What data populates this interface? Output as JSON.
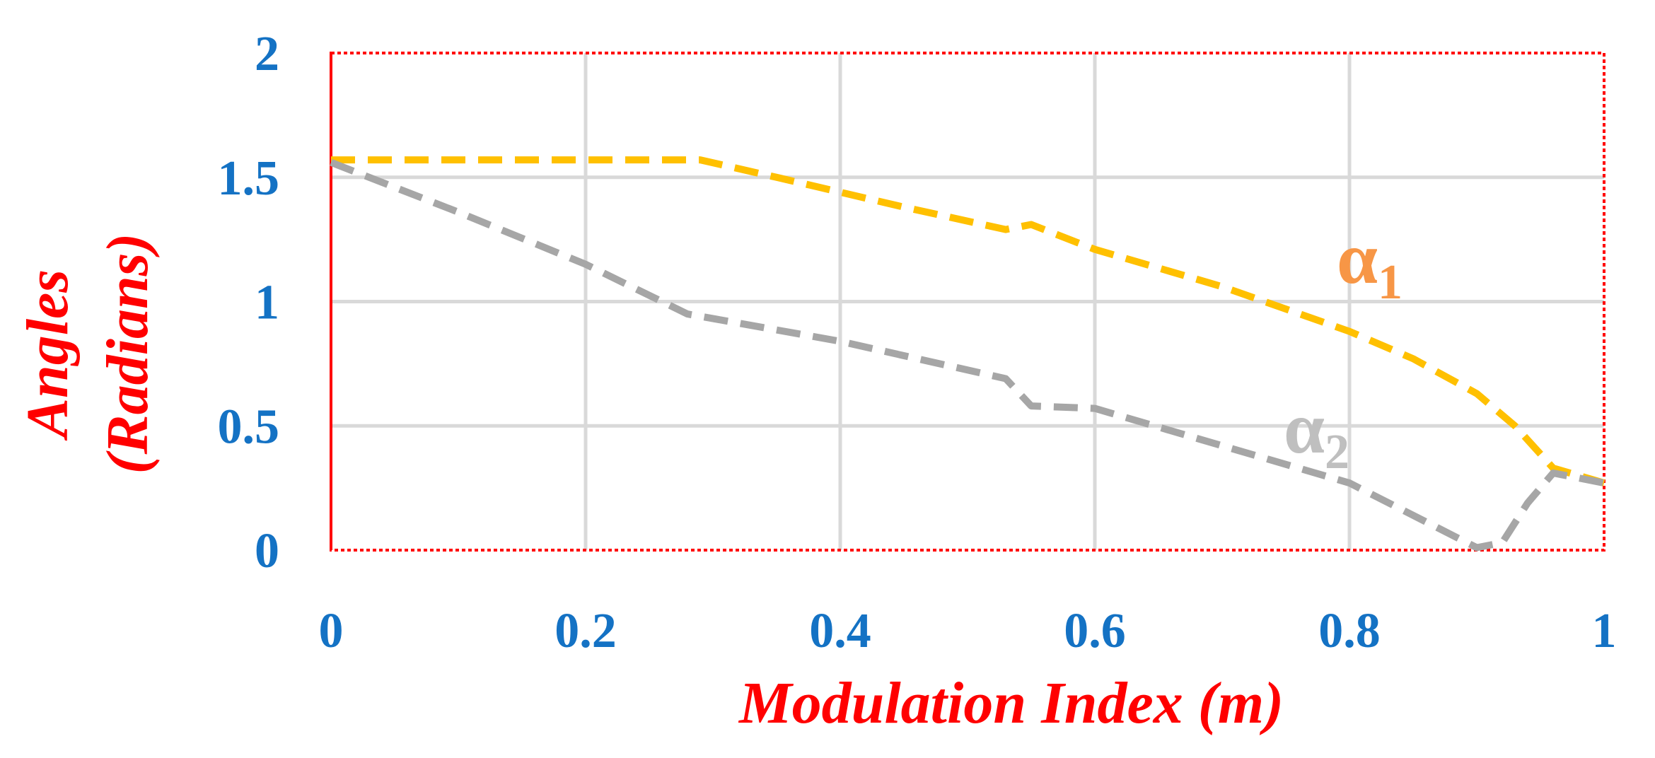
{
  "chart_data": {
    "type": "line",
    "xlabel": "Modulation Index (m)",
    "ylabel_lines": [
      "Angles",
      "(Radians)"
    ],
    "xlim": [
      0,
      1
    ],
    "ylim": [
      0,
      2
    ],
    "x_ticks": [
      "0",
      "0.2",
      "0.4",
      "0.6",
      "0.8",
      "1"
    ],
    "y_ticks": [
      "0",
      "0.5",
      "1",
      "1.5",
      "2"
    ],
    "grid": true,
    "colors": {
      "tick_text": "#1472c4",
      "axis_title": "#ff0000",
      "plot_border": "#ff0000",
      "grid": "#d9d9d9"
    },
    "series": [
      {
        "name": "α1",
        "label_main": "α",
        "label_sub": "1",
        "label_color": "#f79646",
        "color": "#ffc000",
        "dash": "dashed",
        "x": [
          0,
          0.1,
          0.2,
          0.29,
          0.35,
          0.4,
          0.45,
          0.53,
          0.55,
          0.6,
          0.7,
          0.8,
          0.85,
          0.9,
          0.93,
          0.96,
          1.0
        ],
        "y": [
          1.57,
          1.57,
          1.57,
          1.57,
          1.5,
          1.44,
          1.38,
          1.29,
          1.31,
          1.21,
          1.06,
          0.88,
          0.77,
          0.63,
          0.5,
          0.33,
          0.27
        ]
      },
      {
        "name": "α2",
        "label_main": "α",
        "label_sub": "2",
        "label_color": "#bfbfbf",
        "color": "#a6a6a6",
        "dash": "dashed",
        "x": [
          0,
          0.1,
          0.2,
          0.28,
          0.4,
          0.53,
          0.55,
          0.6,
          0.7,
          0.8,
          0.9,
          0.92,
          0.94,
          0.96,
          1.0
        ],
        "y": [
          1.56,
          1.36,
          1.15,
          0.95,
          0.84,
          0.69,
          0.58,
          0.57,
          0.42,
          0.27,
          0.01,
          0.03,
          0.19,
          0.31,
          0.27
        ]
      }
    ]
  }
}
